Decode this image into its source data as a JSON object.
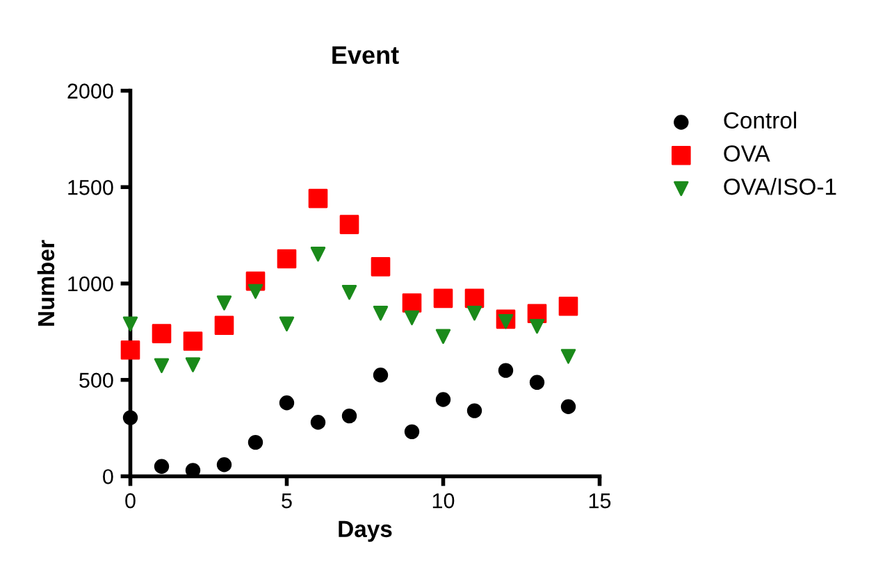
{
  "chart_data": {
    "type": "scatter",
    "title": "Event",
    "xlabel": "Days",
    "ylabel": "Number",
    "x": [
      0,
      1,
      2,
      3,
      4,
      5,
      6,
      7,
      8,
      9,
      10,
      11,
      12,
      13,
      14
    ],
    "series": [
      {
        "name": "Control",
        "color": "#000000",
        "marker": "circle",
        "values": [
          304,
          51,
          31,
          60,
          176,
          381,
          280,
          313,
          525,
          231,
          398,
          340,
          549,
          487,
          361
        ]
      },
      {
        "name": "OVA",
        "color": "#ff0000",
        "marker": "square",
        "values": [
          655,
          740,
          701,
          783,
          1012,
          1128,
          1441,
          1306,
          1087,
          899,
          923,
          923,
          815,
          844,
          882
        ]
      },
      {
        "name": "OVA/ISO-1",
        "color": "#1a8a1a",
        "marker": "triangle",
        "values": [
          790,
          574,
          578,
          899,
          959,
          790,
          1152,
          954,
          846,
          822,
          725,
          846,
          803,
          778,
          622
        ]
      }
    ],
    "xlim": [
      0,
      15
    ],
    "xticks": [
      0,
      5,
      10,
      15
    ],
    "ylim": [
      0,
      2000
    ],
    "yticks": [
      0,
      500,
      1000,
      1500,
      2000
    ],
    "grid": false,
    "legend": "right"
  }
}
